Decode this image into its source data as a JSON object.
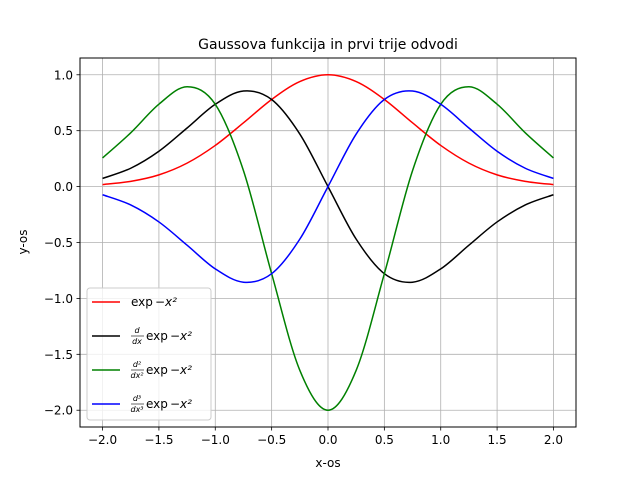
{
  "chart_data": {
    "type": "line",
    "title": "Gaussova funkcija in prvi trije odvodi",
    "xlabel": "x-os",
    "ylabel": "y-os",
    "xlim": [
      -2.2,
      2.2
    ],
    "ylim": [
      -2.15,
      1.15
    ],
    "xticks": [
      -2.0,
      -1.5,
      -1.0,
      -0.5,
      0.0,
      0.5,
      1.0,
      1.5,
      2.0
    ],
    "xtick_labels": [
      "−2.0",
      "−1.5",
      "−1.0",
      "−0.5",
      "0.0",
      "0.5",
      "1.0",
      "1.5",
      "2.0"
    ],
    "yticks": [
      -2.0,
      -1.5,
      -1.0,
      -0.5,
      0.0,
      0.5,
      1.0
    ],
    "ytick_labels": [
      "−2.0",
      "−1.5",
      "−1.0",
      "−0.5",
      "0.0",
      "0.5",
      "1.0"
    ],
    "grid": true,
    "legend_position": "lower-left",
    "x": [
      -2.0,
      -1.75,
      -1.5,
      -1.25,
      -1.0,
      -0.75,
      -0.5,
      -0.25,
      0.0,
      0.25,
      0.5,
      0.75,
      1.0,
      1.25,
      1.5,
      1.75,
      2.0
    ],
    "series": [
      {
        "name_prefix": "exp",
        "name_suffix": "−x²",
        "name_frac_num": "",
        "name_frac_den": "",
        "color": "#ff0000",
        "values": [
          0.018,
          0.047,
          0.105,
          0.21,
          0.368,
          0.57,
          0.779,
          0.939,
          1.0,
          0.939,
          0.779,
          0.57,
          0.368,
          0.21,
          0.105,
          0.047,
          0.018
        ]
      },
      {
        "name_prefix": "exp",
        "name_suffix": "−x²",
        "name_frac_num": "d",
        "name_frac_den": "dx",
        "color": "#000000",
        "values": [
          0.073,
          0.164,
          0.316,
          0.524,
          0.736,
          0.855,
          0.779,
          0.47,
          0.0,
          -0.47,
          -0.779,
          -0.855,
          -0.736,
          -0.524,
          -0.316,
          -0.164,
          -0.073
        ]
      },
      {
        "name_prefix": "exp",
        "name_suffix": "−x²",
        "name_frac_num": "d²",
        "name_frac_den": "dx²",
        "color": "#008000",
        "values": [
          0.256,
          0.481,
          0.737,
          0.893,
          0.736,
          0.143,
          -0.779,
          -1.643,
          -2.0,
          -1.643,
          -0.779,
          0.143,
          0.736,
          0.893,
          0.737,
          0.481,
          0.256
        ]
      },
      {
        "name_prefix": "exp",
        "name_suffix": "−x²",
        "name_frac_num": "d³",
        "name_frac_den": "dx³",
        "color": "#0000ff",
        "values": [
          -0.073,
          -0.164,
          -0.316,
          -0.524,
          -0.736,
          -0.855,
          -0.779,
          -0.47,
          0.0,
          0.47,
          0.779,
          0.855,
          0.736,
          0.524,
          0.316,
          0.164,
          0.073
        ]
      }
    ]
  }
}
